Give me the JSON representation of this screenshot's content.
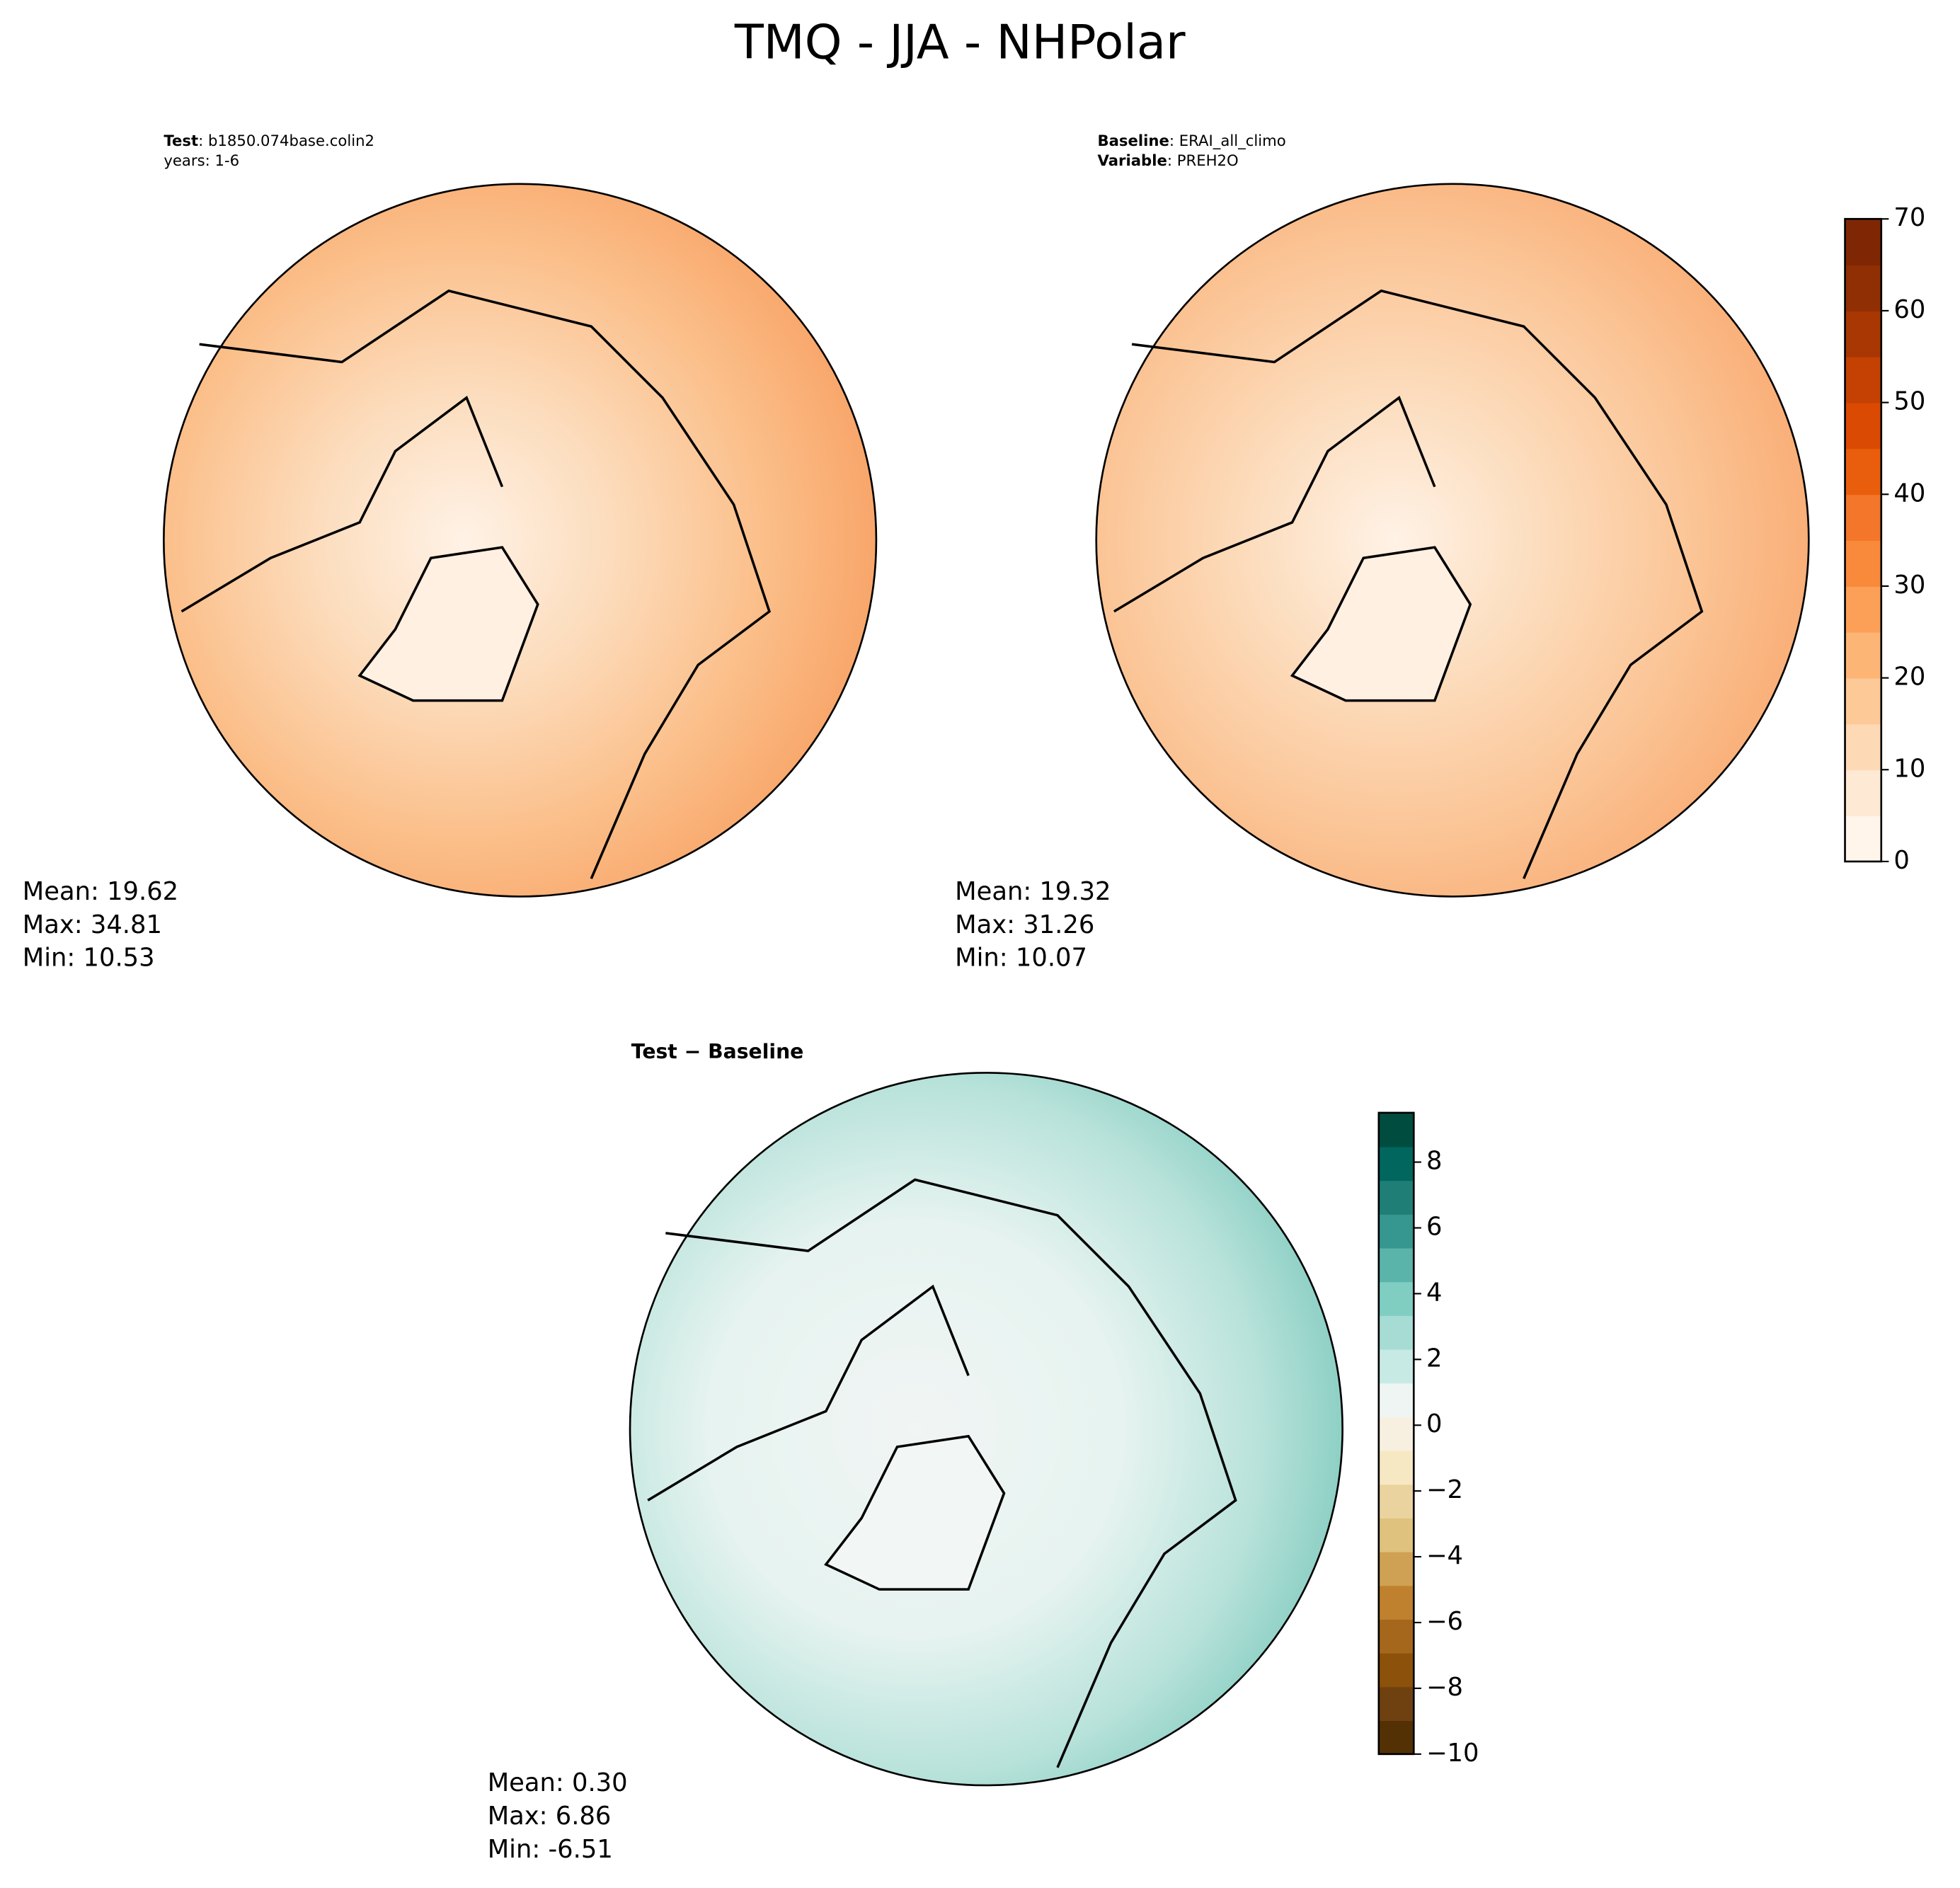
{
  "title": "TMQ - JJA - NHPolar",
  "chart_data": [
    {
      "type": "map",
      "header": [
        {
          "label": "Test",
          "text": ": b1850.074base.colin2"
        },
        {
          "text": "years: 1-6"
        }
      ],
      "stats": [
        "Mean: 19.62",
        "Max: 34.81",
        "Min: 10.53"
      ]
    },
    {
      "type": "map",
      "header": [
        {
          "label": "Baseline",
          "text": ": ERAI_all_climo"
        },
        {
          "label": "Variable",
          "text": ": PREH2O"
        }
      ],
      "stats": [
        "Mean: 19.32",
        "Max: 31.26",
        "Min: 10.07"
      ],
      "colorbar": {
        "ylim": [
          0,
          70
        ],
        "yticks": [
          0,
          10,
          20,
          30,
          40,
          50,
          60,
          70
        ],
        "colors": [
          "#fff5eb",
          "#fee9d4",
          "#fdd9b5",
          "#fdc997",
          "#fdb576",
          "#fda057",
          "#f9893b",
          "#f3762a",
          "#e95e0d",
          "#db4a02",
          "#c44103",
          "#a83703",
          "#8f2f03",
          "#7f2704"
        ]
      }
    },
    {
      "type": "map",
      "header": [
        {
          "label": "Test − Baseline"
        }
      ],
      "stats": [
        "Mean:  0.30",
        "Max:  6.86",
        "Min: -6.51"
      ],
      "colorbar": {
        "ylim": [
          -10,
          9.5
        ],
        "yticks": [
          {
            "value": -10,
            "label": "−10"
          },
          {
            "value": -8,
            "label": "−8"
          },
          {
            "value": -6,
            "label": "−6"
          },
          {
            "value": -4,
            "label": "−4"
          },
          {
            "value": -2,
            "label": "−2"
          },
          0,
          2,
          4,
          6,
          8
        ],
        "colors": [
          "#543005",
          "#6f4110",
          "#8c510a",
          "#a5671b",
          "#bf812d",
          "#cfa154",
          "#dfc27d",
          "#ead39f",
          "#f6e8c3",
          "#f7f0e0",
          "#eef5f3",
          "#c7eae5",
          "#a6dcd3",
          "#80cdc1",
          "#5ab4a9",
          "#35978f",
          "#1f7f77",
          "#01665e",
          "#004d40"
        ]
      }
    }
  ]
}
